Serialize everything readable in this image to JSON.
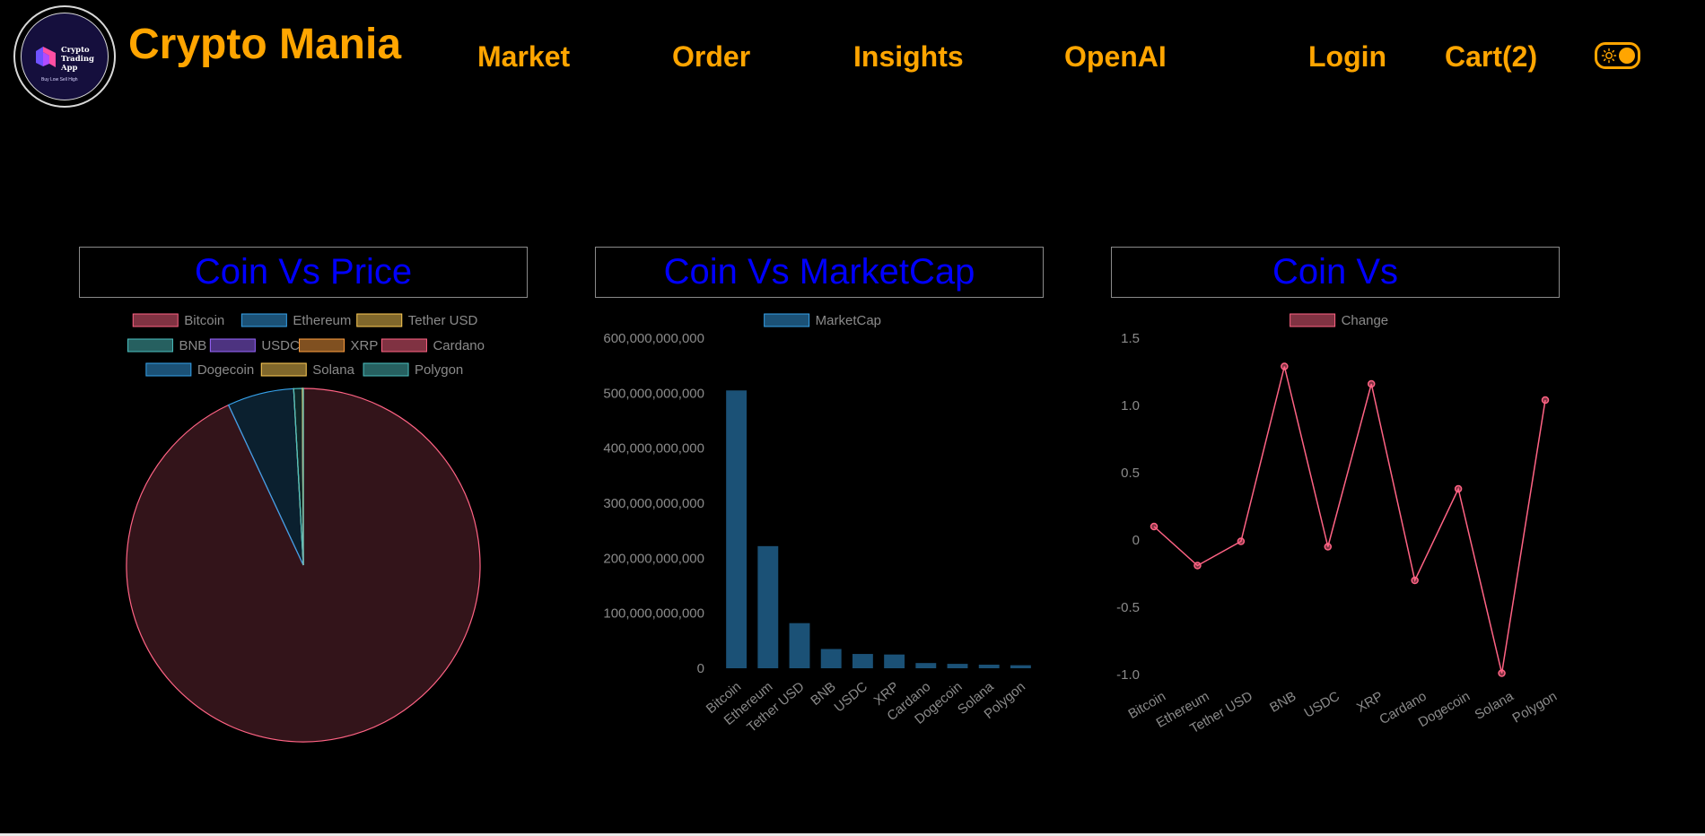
{
  "header": {
    "app_title": "Crypto Mania",
    "logo": {
      "line1": "Crypto",
      "line2": "Trading",
      "line3": "App",
      "tagline": "Buy Low Sell High"
    },
    "nav": {
      "market": "Market",
      "order": "Order",
      "insights": "Insights",
      "openai": "OpenAI",
      "login": "Login",
      "cart": "Cart(2)"
    },
    "theme_toggle_icon": "sun-toggle-icon",
    "accent_color": "#ffa500"
  },
  "chart_data": [
    {
      "type": "pie",
      "title": "Coin Vs Price",
      "categories": [
        "Bitcoin",
        "Ethereum",
        "Tether USD",
        "BNB",
        "USDC",
        "XRP",
        "Cardano",
        "Dogecoin",
        "Solana",
        "Polygon"
      ],
      "values": [
        26000,
        1700,
        1.0,
        220,
        1.0,
        0.5,
        0.26,
        0.06,
        20,
        0.55
      ],
      "legend": "top",
      "colors": [
        "#ff6384",
        "#36a2eb",
        "#ffcd56",
        "#4bc0c0",
        "#9966ff",
        "#ff9f40",
        "#ff6384",
        "#36a2eb",
        "#ffcd56",
        "#4bc0c0"
      ]
    },
    {
      "type": "bar",
      "title": "Coin Vs MarketCap",
      "categories": [
        "Bitcoin",
        "Ethereum",
        "Tether USD",
        "BNB",
        "USDC",
        "XRP",
        "Cardano",
        "Dogecoin",
        "Solana",
        "Polygon"
      ],
      "series": [
        {
          "name": "MarketCap",
          "values": [
            505000000000,
            222000000000,
            82000000000,
            35000000000,
            26000000000,
            25000000000,
            9500000000,
            8000000000,
            6500000000,
            5500000000
          ]
        }
      ],
      "ylim": [
        0,
        600000000000
      ],
      "yticks": [
        "0",
        "100,000,000,000",
        "200,000,000,000",
        "300,000,000,000",
        "400,000,000,000",
        "500,000,000,000",
        "600,000,000,000"
      ],
      "legend": "top",
      "color": "#36a2eb",
      "grid": false
    },
    {
      "type": "line",
      "title": "Coin Vs",
      "categories": [
        "Bitcoin",
        "Ethereum",
        "Tether USD",
        "BNB",
        "USDC",
        "XRP",
        "Cardano",
        "Dogecoin",
        "Solana",
        "Polygon"
      ],
      "series": [
        {
          "name": "Change",
          "values": [
            0.1,
            -0.19,
            -0.01,
            1.29,
            -0.05,
            1.16,
            -0.3,
            0.38,
            -0.99,
            1.04
          ]
        }
      ],
      "ylim": [
        -1.0,
        1.5
      ],
      "yticks": [
        "-1.0",
        "-0.5",
        "0",
        "0.5",
        "1.0",
        "1.5"
      ],
      "legend": "top",
      "color": "#ff6384",
      "grid": false
    }
  ]
}
